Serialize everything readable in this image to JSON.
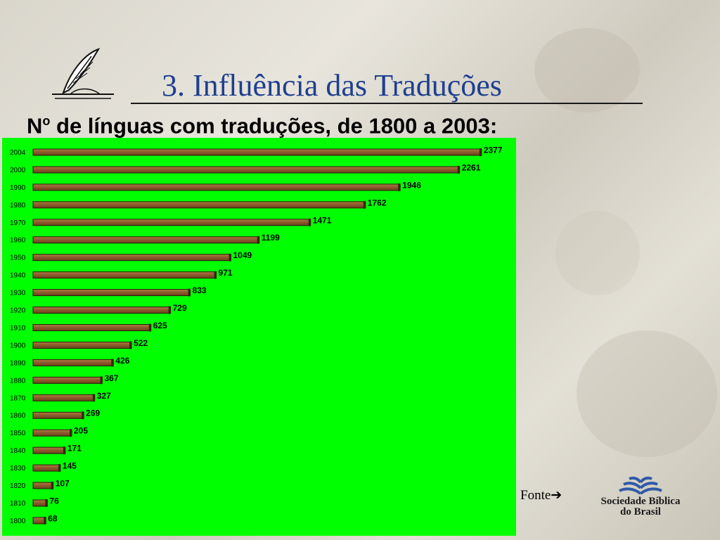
{
  "header": {
    "title": "3. Influência das Traduções",
    "subtitle_prefix": "N",
    "subtitle_sup": "o",
    "subtitle_rest": " de línguas com traduções, de 1800 a 2003:"
  },
  "source": {
    "label": "Fonte",
    "arrow": "➔"
  },
  "logo": {
    "line1": "Sociedade Bíblica",
    "line2": "do Brasil",
    "icon": "open-book-icon",
    "color": "#2f5aa8"
  },
  "colors": {
    "panel": "#00ff00",
    "bar": "#8b5a2b",
    "title": "#1f3f8f"
  },
  "chart_data": {
    "type": "bar",
    "orientation": "horizontal",
    "categories": [
      "2004",
      "2000",
      "1990",
      "1980",
      "1970",
      "1960",
      "1950",
      "1940",
      "1930",
      "1920",
      "1910",
      "1900",
      "1890",
      "1880",
      "1870",
      "1860",
      "1850",
      "1840",
      "1830",
      "1820",
      "1810",
      "1800"
    ],
    "values": [
      2377,
      2261,
      1946,
      1762,
      1471,
      1199,
      1049,
      971,
      833,
      729,
      625,
      522,
      426,
      367,
      327,
      269,
      205,
      171,
      145,
      107,
      76,
      68
    ],
    "xlim": [
      0,
      2400
    ],
    "grid": false,
    "legend": "none"
  }
}
